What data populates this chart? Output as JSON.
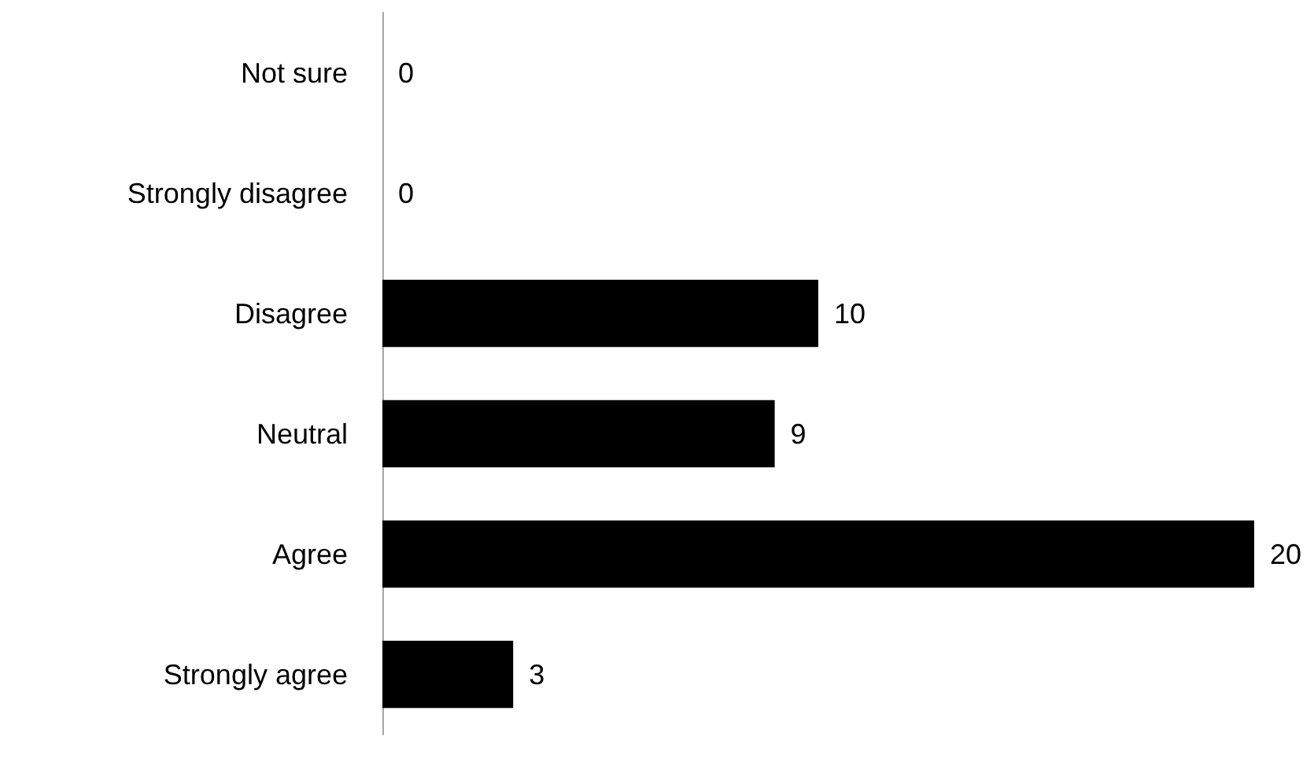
{
  "chart_data": {
    "type": "bar",
    "orientation": "horizontal",
    "categories": [
      "Not sure",
      "Strongly disagree",
      "Disagree",
      "Neutral",
      "Agree",
      "Strongly agree"
    ],
    "values": [
      0,
      0,
      10,
      9,
      20,
      3
    ],
    "color": "#000000",
    "data_labels": true
  }
}
